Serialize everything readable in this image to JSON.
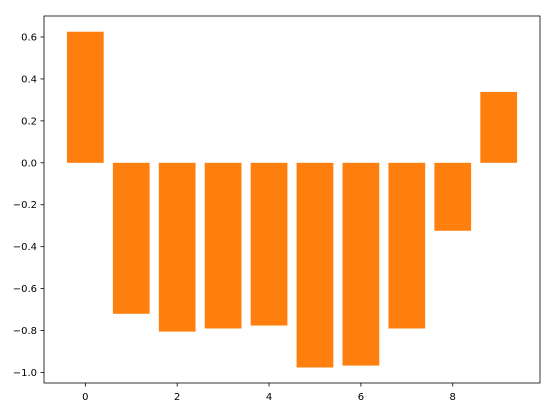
{
  "chart_data": {
    "type": "bar",
    "x": [
      0,
      1,
      2,
      3,
      4,
      5,
      6,
      7,
      8,
      9
    ],
    "values": [
      0.625,
      -0.72,
      -0.805,
      -0.79,
      -0.776,
      -0.976,
      -0.967,
      -0.79,
      -0.324,
      0.338
    ],
    "color": "#ff7f0e",
    "xlim": [
      -0.9,
      9.9
    ],
    "xticks": [
      0,
      2,
      4,
      6,
      8
    ],
    "ylim": [
      -1.05,
      0.7
    ],
    "yticks": [
      {
        "value": -1.0,
        "label": "−1.0"
      },
      {
        "value": -0.8,
        "label": "−0.8"
      },
      {
        "value": -0.6,
        "label": "−0.6"
      },
      {
        "value": -0.4,
        "label": "−0.4"
      },
      {
        "value": -0.2,
        "label": "−0.2"
      },
      {
        "value": 0,
        "label": "0.0"
      },
      0.2,
      0.4,
      0.6
    ],
    "grid": false
  }
}
